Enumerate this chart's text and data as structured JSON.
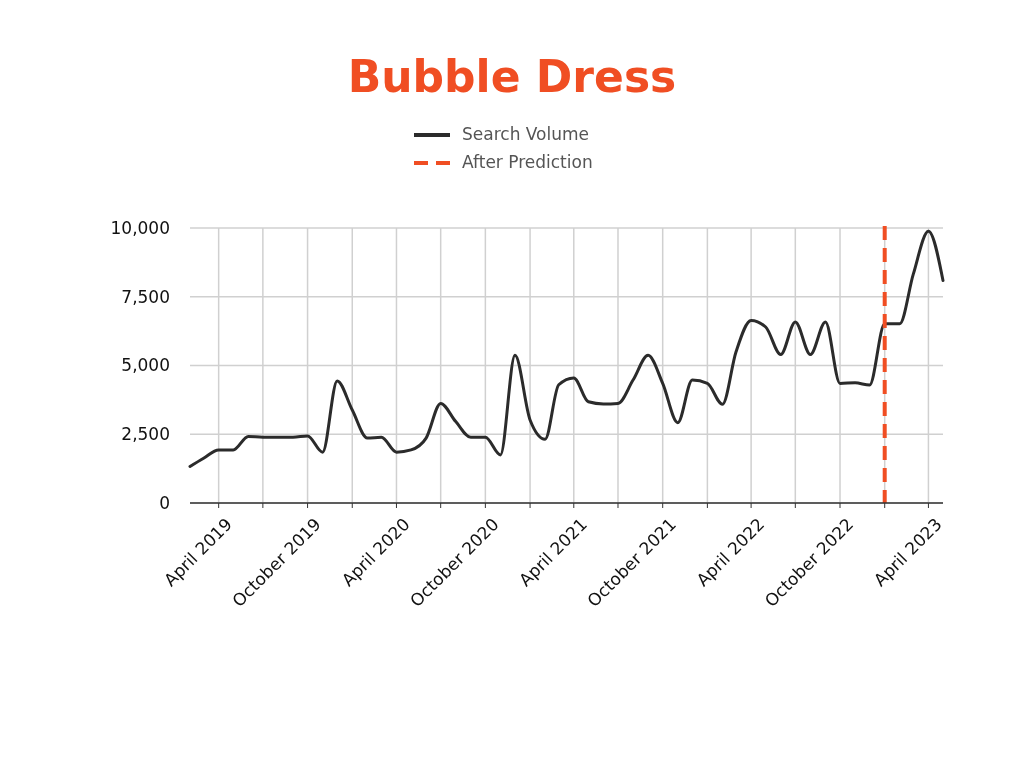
{
  "chart_data": {
    "type": "line",
    "title": "Bubble Dress",
    "x": [
      "2019-02",
      "2019-03",
      "2019-04",
      "2019-05",
      "2019-06",
      "2019-07",
      "2019-08",
      "2019-09",
      "2019-10",
      "2019-11",
      "2019-12",
      "2020-01",
      "2020-02",
      "2020-03",
      "2020-04",
      "2020-05",
      "2020-06",
      "2020-07",
      "2020-08",
      "2020-09",
      "2020-10",
      "2020-11",
      "2020-12",
      "2021-01",
      "2021-02",
      "2021-03",
      "2021-04",
      "2021-05",
      "2021-06",
      "2021-07",
      "2021-08",
      "2021-09",
      "2021-10",
      "2021-11",
      "2021-12",
      "2022-01",
      "2022-02",
      "2022-03",
      "2022-04",
      "2022-05",
      "2022-06",
      "2022-07",
      "2022-08",
      "2022-09",
      "2022-10",
      "2022-11",
      "2022-12",
      "2023-01",
      "2023-02",
      "2023-03",
      "2023-04",
      "2023-05"
    ],
    "series": [
      {
        "name": "Search Volume",
        "color": "#2b2b2b",
        "values": [
          1330,
          1630,
          1930,
          1930,
          2420,
          2390,
          2390,
          2390,
          2440,
          1850,
          4440,
          3380,
          2360,
          2390,
          1850,
          1930,
          2360,
          3620,
          2960,
          2390,
          2390,
          1750,
          5370,
          3020,
          2320,
          4300,
          4550,
          3680,
          3600,
          3620,
          4470,
          5370,
          4350,
          2920,
          4470,
          4350,
          3590,
          5500,
          6640,
          6400,
          5400,
          6580,
          5400,
          6580,
          4350,
          4370,
          4290,
          6520,
          6520,
          8330,
          9880,
          8090
        ]
      }
    ],
    "xlim": [
      "2019-02",
      "2023-05"
    ],
    "xticks": [
      {
        "value": "2019-04",
        "label": "April 2019"
      },
      {
        "value": "2019-07",
        "label": null
      },
      {
        "value": "2019-10",
        "label": "October 2019"
      },
      {
        "value": "2020-01",
        "label": null
      },
      {
        "value": "2020-04",
        "label": "April 2020"
      },
      {
        "value": "2020-07",
        "label": null
      },
      {
        "value": "2020-10",
        "label": "October 2020"
      },
      {
        "value": "2021-01",
        "label": null
      },
      {
        "value": "2021-04",
        "label": "April 2021"
      },
      {
        "value": "2021-07",
        "label": null
      },
      {
        "value": "2021-10",
        "label": "October 2021"
      },
      {
        "value": "2022-01",
        "label": null
      },
      {
        "value": "2022-04",
        "label": "April 2022"
      },
      {
        "value": "2022-07",
        "label": null
      },
      {
        "value": "2022-10",
        "label": "October 2022"
      },
      {
        "value": "2023-01",
        "label": null
      },
      {
        "value": "2023-04",
        "label": "April 2023"
      }
    ],
    "ylim": [
      0,
      10000
    ],
    "yticks": [
      {
        "value": 0,
        "label": "0"
      },
      {
        "value": 2500,
        "label": "2,500"
      },
      {
        "value": 5000,
        "label": "5,000"
      },
      {
        "value": 7500,
        "label": "7,500"
      },
      {
        "value": 10000,
        "label": "10,000"
      }
    ],
    "grid": true,
    "legend": "top",
    "ref_lines": [
      {
        "axis": "x",
        "value": "2023-01",
        "label": "After Prediction",
        "color": "#f04e23",
        "line_style": "dashed"
      }
    ]
  }
}
